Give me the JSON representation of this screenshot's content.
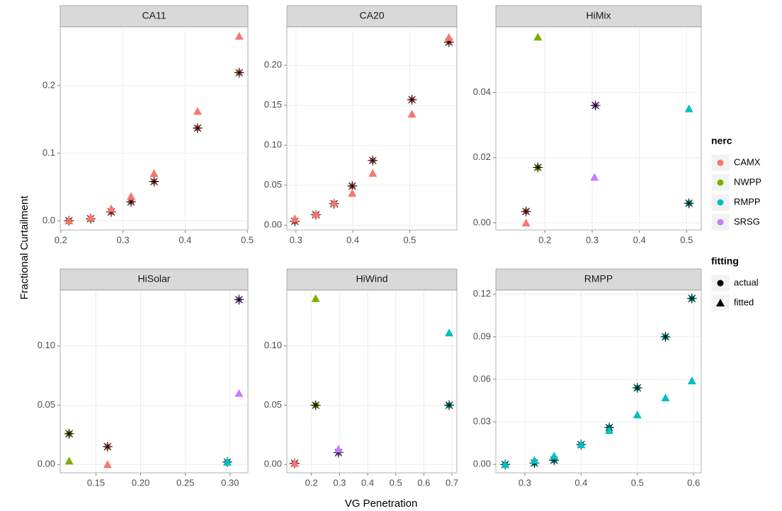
{
  "xlabel": "VG Penetration",
  "ylabel": "Fractional Curtailment",
  "legend": {
    "position": "right",
    "groups": [
      {
        "title": "nerc",
        "items": [
          {
            "name": "CAMX",
            "color": "#F8766D"
          },
          {
            "name": "NWPP",
            "color": "#7CAE00"
          },
          {
            "name": "RMPP",
            "color": "#00BFC4"
          },
          {
            "name": "SRSG",
            "color": "#C77CFF"
          }
        ]
      },
      {
        "title": "fitting",
        "items": [
          {
            "name": "actual",
            "shape": "circle"
          },
          {
            "name": "fitted",
            "shape": "triangle"
          }
        ]
      }
    ]
  },
  "chart_data": [
    {
      "type": "scatter",
      "title": "CA11",
      "grid": true,
      "xlim": [
        0.199,
        0.501
      ],
      "ylim": [
        -0.0137,
        0.2867
      ],
      "xticks": [
        0.2,
        0.3,
        0.4,
        0.5
      ],
      "yticks": [
        {
          "value": 0,
          "label": "0.0"
        },
        0.1,
        0.2
      ],
      "series": [
        {
          "nerc": "CAMX",
          "fitting": "actual",
          "x": [
            0.213,
            0.248,
            0.281,
            0.313,
            0.35,
            0.42,
            0.487
          ],
          "y": [
            0.0,
            0.003,
            0.013,
            0.028,
            0.058,
            0.137,
            0.219
          ]
        },
        {
          "nerc": "CAMX",
          "fitting": "fitted",
          "x": [
            0.213,
            0.248,
            0.281,
            0.313,
            0.35,
            0.42,
            0.487
          ],
          "y": [
            0.0,
            0.005,
            0.018,
            0.036,
            0.07,
            0.162,
            0.273
          ]
        }
      ]
    },
    {
      "type": "scatter",
      "title": "CA20",
      "grid": true,
      "xlim": [
        0.284,
        0.583
      ],
      "ylim": [
        -0.006,
        0.248
      ],
      "xticks": [
        0.3,
        0.4,
        0.5
      ],
      "yticks": [
        {
          "value": 0,
          "label": "0.00"
        },
        0.05,
        {
          "value": 0.1,
          "label": "0.10"
        },
        0.15,
        {
          "value": 0.2,
          "label": "0.20"
        }
      ],
      "series": [
        {
          "nerc": "CAMX",
          "fitting": "actual",
          "x": [
            0.298,
            0.335,
            0.367,
            0.399,
            0.435,
            0.504,
            0.569
          ],
          "y": [
            0.005,
            0.013,
            0.027,
            0.049,
            0.081,
            0.157,
            0.229
          ]
        },
        {
          "nerc": "CAMX",
          "fitting": "fitted",
          "x": [
            0.298,
            0.335,
            0.367,
            0.399,
            0.435,
            0.504,
            0.569
          ],
          "y": [
            0.008,
            0.014,
            0.028,
            0.04,
            0.065,
            0.139,
            0.235
          ]
        }
      ]
    },
    {
      "type": "scatter",
      "title": "HiMix",
      "grid": true,
      "xlim": [
        0.096,
        0.531
      ],
      "ylim": [
        -0.0022,
        0.0601
      ],
      "xticks": [
        0.2,
        0.3,
        0.4,
        0.5
      ],
      "yticks": [
        {
          "value": 0,
          "label": "0.00"
        },
        {
          "value": 0.02,
          "label": "0.02"
        },
        {
          "value": 0.04,
          "label": "0.04"
        }
      ],
      "series": [
        {
          "nerc": "CAMX",
          "fitting": "actual",
          "x": [
            0.16
          ],
          "y": [
            0.0035
          ]
        },
        {
          "nerc": "CAMX",
          "fitting": "fitted",
          "x": [
            0.16
          ],
          "y": [
            0.0
          ]
        },
        {
          "nerc": "NWPP",
          "fitting": "actual",
          "x": [
            0.185
          ],
          "y": [
            0.017
          ]
        },
        {
          "nerc": "NWPP",
          "fitting": "fitted",
          "x": [
            0.185
          ],
          "y": [
            0.057
          ]
        },
        {
          "nerc": "RMPP",
          "fitting": "actual",
          "x": [
            0.505
          ],
          "y": [
            0.006
          ]
        },
        {
          "nerc": "RMPP",
          "fitting": "fitted",
          "x": [
            0.505
          ],
          "y": [
            0.035
          ]
        },
        {
          "nerc": "SRSG",
          "fitting": "actual",
          "x": [
            0.307
          ],
          "y": [
            0.036
          ]
        },
        {
          "nerc": "SRSG",
          "fitting": "fitted",
          "x": [
            0.305
          ],
          "y": [
            0.014
          ]
        }
      ]
    },
    {
      "type": "scatter",
      "title": "HiSolar",
      "grid": true,
      "xlim": [
        0.11,
        0.32
      ],
      "ylim": [
        -0.007,
        0.147
      ],
      "xticks": [
        0.15,
        {
          "value": 0.2,
          "label": "0.20"
        },
        0.25,
        {
          "value": 0.3,
          "label": "0.30"
        }
      ],
      "yticks": [
        {
          "value": 0,
          "label": "0.00"
        },
        0.05,
        {
          "value": 0.1,
          "label": "0.10"
        }
      ],
      "series": [
        {
          "nerc": "CAMX",
          "fitting": "actual",
          "x": [
            0.163
          ],
          "y": [
            0.015
          ]
        },
        {
          "nerc": "CAMX",
          "fitting": "fitted",
          "x": [
            0.163
          ],
          "y": [
            0.0
          ]
        },
        {
          "nerc": "NWPP",
          "fitting": "actual",
          "x": [
            0.12
          ],
          "y": [
            0.026
          ]
        },
        {
          "nerc": "NWPP",
          "fitting": "fitted",
          "x": [
            0.12
          ],
          "y": [
            0.003
          ]
        },
        {
          "nerc": "RMPP",
          "fitting": "actual",
          "x": [
            0.297
          ],
          "y": [
            0.002
          ]
        },
        {
          "nerc": "RMPP",
          "fitting": "fitted",
          "x": [
            0.297
          ],
          "y": [
            0.002
          ]
        },
        {
          "nerc": "SRSG",
          "fitting": "actual",
          "x": [
            0.31
          ],
          "y": [
            0.139
          ]
        },
        {
          "nerc": "SRSG",
          "fitting": "fitted",
          "x": [
            0.31
          ],
          "y": [
            0.06
          ]
        }
      ]
    },
    {
      "type": "scatter",
      "title": "HiWind",
      "grid": true,
      "xlim": [
        0.1125,
        0.7175
      ],
      "ylim": [
        -0.007,
        0.147
      ],
      "xticks": [
        0.2,
        0.3,
        0.4,
        0.5,
        0.6,
        0.7
      ],
      "yticks": [
        {
          "value": 0,
          "label": "0.00"
        },
        0.05,
        {
          "value": 0.1,
          "label": "0.10"
        }
      ],
      "series": [
        {
          "nerc": "CAMX",
          "fitting": "actual",
          "x": [
            0.14
          ],
          "y": [
            0.001
          ]
        },
        {
          "nerc": "CAMX",
          "fitting": "fitted",
          "x": [
            0.14
          ],
          "y": [
            0.001
          ]
        },
        {
          "nerc": "NWPP",
          "fitting": "actual",
          "x": [
            0.215
          ],
          "y": [
            0.05
          ]
        },
        {
          "nerc": "NWPP",
          "fitting": "fitted",
          "x": [
            0.215
          ],
          "y": [
            0.14
          ]
        },
        {
          "nerc": "RMPP",
          "fitting": "actual",
          "x": [
            0.69
          ],
          "y": [
            0.05
          ]
        },
        {
          "nerc": "RMPP",
          "fitting": "fitted",
          "x": [
            0.69
          ],
          "y": [
            0.111
          ]
        },
        {
          "nerc": "SRSG",
          "fitting": "actual",
          "x": [
            0.296
          ],
          "y": [
            0.01
          ]
        },
        {
          "nerc": "SRSG",
          "fitting": "fitted",
          "x": [
            0.296
          ],
          "y": [
            0.013
          ]
        }
      ]
    },
    {
      "type": "scatter",
      "title": "RMPP",
      "grid": true,
      "xlim": [
        0.2484,
        0.6136
      ],
      "ylim": [
        -0.00585,
        0.12285
      ],
      "xticks": [
        0.3,
        0.4,
        0.5,
        0.6
      ],
      "yticks": [
        {
          "value": 0,
          "label": "0.00"
        },
        0.03,
        0.06,
        0.09,
        {
          "value": 0.12,
          "label": "0.12"
        }
      ],
      "series": [
        {
          "nerc": "RMPP",
          "fitting": "actual",
          "x": [
            0.265,
            0.317,
            0.352,
            0.4,
            0.45,
            0.5,
            0.55,
            0.597
          ],
          "y": [
            0.0,
            0.001,
            0.003,
            0.014,
            0.026,
            0.054,
            0.09,
            0.117
          ]
        },
        {
          "nerc": "RMPP",
          "fitting": "fitted",
          "x": [
            0.265,
            0.317,
            0.352,
            0.4,
            0.45,
            0.5,
            0.55,
            0.597
          ],
          "y": [
            0.0,
            0.003,
            0.006,
            0.014,
            0.024,
            0.035,
            0.047,
            0.059
          ]
        }
      ]
    }
  ]
}
